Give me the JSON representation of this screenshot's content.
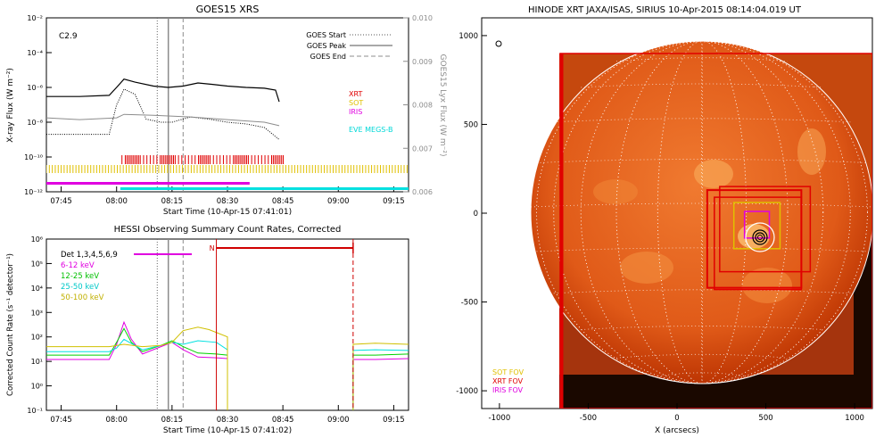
{
  "colors": {
    "xrt": "#e00000",
    "sot": "#e0c000",
    "iris": "#e000e0",
    "eve": "#00e0e0",
    "band_6_12": "#e000e0",
    "band_12_25": "#00d000",
    "band_25_50": "#00e0e0",
    "band_50_100": "#d0c000",
    "gray": "#8c8c8c",
    "sun_dark": "#c83000",
    "sun_light": "#f08030"
  },
  "goes": {
    "title": "GOES15 XRS",
    "ylabel": "X-ray Flux (W m⁻²)",
    "y2label": "GOES15 Lyx Flux (W m⁻²)",
    "xlabel": "Start Time (10-Apr-15 07:41:01)",
    "class_label": "C2.9",
    "legend": [
      "GOES Start",
      "GOES Peak",
      "GOES End"
    ],
    "inst_legend": [
      "XRT",
      "SOT",
      "IRIS",
      "EVE MEGS-B"
    ],
    "ytick_labels": [
      "10⁻¹²",
      "10⁻¹⁰",
      "10⁻⁸",
      "10⁻⁶",
      "10⁻⁴",
      "10⁻²"
    ],
    "y2tick_labels": [
      "0.006",
      "0.007",
      "0.008",
      "0.009",
      "0.010"
    ],
    "xtick_labels": [
      "07:45",
      "08:00",
      "08:15",
      "08:30",
      "08:45",
      "09:00",
      "09:15"
    ]
  },
  "hessi": {
    "title": "HESSI Observing Summary Count Rates, Corrected",
    "ylabel": "Corrected Count Rate (s⁻¹ detector⁻¹)",
    "xlabel": "Start Time (10-Apr-15 07:41:02)",
    "legend": [
      "Det 1,3,4,5,6,9",
      "6-12 keV",
      "12-25 keV",
      "25-50 keV",
      "50-100 keV"
    ],
    "night_label": "N",
    "ytick_labels": [
      "10⁻¹",
      "10⁰",
      "10¹",
      "10²",
      "10³",
      "10⁴",
      "10⁵",
      "10⁶"
    ],
    "xtick_labels": [
      "07:45",
      "08:00",
      "08:15",
      "08:30",
      "08:45",
      "09:00",
      "09:15"
    ]
  },
  "sun": {
    "title": "HINODE XRT JAXA/ISAS, SIRIUS 10-Apr-2015 08:14:04.019 UT",
    "xlabel": "X (arcsecs)",
    "xtick_labels": [
      "-1000",
      "-500",
      "0",
      "500",
      "1000"
    ],
    "ytick_labels": [
      "1000",
      "500",
      "0",
      "-500",
      "-1000"
    ],
    "fov_legend": [
      "SOT FOV",
      "XRT FOV",
      "IRIS FOV"
    ]
  },
  "chart_data": [
    {
      "type": "line",
      "title": "GOES15 XRS",
      "ylabel": "X-ray Flux (W m⁻²)",
      "y2label": "GOES15 Lyx Flux (W m⁻²)",
      "xlabel": "Start Time (10-Apr-15 07:41:01)",
      "x_range": [
        "07:41",
        "09:19"
      ],
      "ylim": [
        1e-12,
        0.01
      ],
      "y2lim": [
        0.006,
        0.01
      ],
      "scale": "log",
      "flare_class": "C2.9",
      "goes_start": "08:11",
      "goes_peak": "08:14",
      "goes_end": "08:18",
      "series": [
        {
          "name": "long",
          "x": [
            "07:41",
            "07:50",
            "07:58",
            "08:00",
            "08:02",
            "08:05",
            "08:10",
            "08:14",
            "08:18",
            "08:22",
            "08:26",
            "08:30",
            "08:35",
            "08:40",
            "08:43",
            "08:44"
          ],
          "y": [
            3e-07,
            3e-07,
            3.5e-07,
            1e-06,
            3e-06,
            2e-06,
            1.2e-06,
            1e-06,
            1.2e-06,
            1.8e-06,
            1.5e-06,
            1.2e-06,
            1e-06,
            9e-07,
            7e-07,
            1.5e-07
          ]
        },
        {
          "name": "short",
          "x": [
            "07:41",
            "07:50",
            "07:58",
            "08:00",
            "08:02",
            "08:05",
            "08:08",
            "08:12",
            "08:15",
            "08:20",
            "08:25",
            "08:30",
            "08:35",
            "08:40",
            "08:44"
          ],
          "y": [
            2e-09,
            2e-09,
            2e-09,
            1e-07,
            8e-07,
            4e-07,
            1.5e-08,
            1e-08,
            1e-08,
            2e-08,
            1.5e-08,
            1e-08,
            8e-09,
            5e-09,
            1e-09
          ]
        },
        {
          "name": "lyman-alpha",
          "x": [
            "07:41",
            "07:50",
            "08:00",
            "08:02",
            "08:10",
            "08:20",
            "08:30",
            "08:40",
            "08:44"
          ],
          "y": [
            0.0077,
            0.00766,
            0.0077,
            0.00778,
            0.00776,
            0.00772,
            0.00766,
            0.0076,
            0.00752
          ]
        }
      ],
      "instrument_coverage": {
        "XRT": [
          "08:01",
          "08:46"
        ],
        "SOT": [
          "07:41",
          "09:19"
        ],
        "IRIS": [
          "07:41",
          "08:36"
        ],
        "EVE MEGS-B": [
          "08:01",
          "09:19"
        ]
      }
    },
    {
      "type": "line",
      "title": "HESSI Observing Summary Count Rates, Corrected",
      "ylabel": "Corrected Count Rate (s⁻¹ detector⁻¹)",
      "xlabel": "Start Time (10-Apr-15 07:41:02)",
      "x_range": [
        "07:41",
        "09:19"
      ],
      "ylim": [
        0.1,
        1000000.0
      ],
      "scale": "log",
      "night": [
        "08:27",
        "09:04"
      ],
      "series": [
        {
          "name": "6-12 keV",
          "x": [
            "07:41",
            "07:58",
            "08:00",
            "08:02",
            "08:04",
            "08:07",
            "08:12",
            "08:15",
            "08:18",
            "08:22",
            "08:27",
            "08:30"
          ],
          "y": [
            12,
            12,
            50,
            400,
            80,
            20,
            40,
            60,
            30,
            15,
            14,
            13
          ]
        },
        {
          "name": "12-25 keV",
          "x": [
            "07:41",
            "07:58",
            "08:00",
            "08:02",
            "08:04",
            "08:07",
            "08:12",
            "08:15",
            "08:18",
            "08:22",
            "08:27",
            "08:30"
          ],
          "y": [
            18,
            18,
            60,
            220,
            60,
            25,
            45,
            70,
            40,
            22,
            20,
            18
          ]
        },
        {
          "name": "25-50 keV",
          "x": [
            "07:41",
            "07:58",
            "08:00",
            "08:02",
            "08:07",
            "08:12",
            "08:15",
            "08:18",
            "08:22",
            "08:27",
            "08:30"
          ],
          "y": [
            25,
            25,
            35,
            80,
            30,
            45,
            60,
            50,
            70,
            60,
            30
          ]
        },
        {
          "name": "50-100 keV",
          "x": [
            "07:41",
            "07:58",
            "08:02",
            "08:07",
            "08:12",
            "08:15",
            "08:18",
            "08:22",
            "08:25",
            "08:30"
          ],
          "y": [
            40,
            40,
            50,
            40,
            45,
            60,
            180,
            250,
            200,
            100
          ]
        }
      ],
      "after_night": [
        {
          "name": "6-12 keV",
          "x": [
            "09:04",
            "09:10",
            "09:19"
          ],
          "y": [
            12,
            12,
            13
          ]
        },
        {
          "name": "12-25 keV",
          "x": [
            "09:04",
            "09:10",
            "09:19"
          ],
          "y": [
            18,
            18,
            20
          ]
        },
        {
          "name": "25-50 keV",
          "x": [
            "09:04",
            "09:10",
            "09:19"
          ],
          "y": [
            28,
            30,
            28
          ]
        },
        {
          "name": "50-100 keV",
          "x": [
            "09:04",
            "09:10",
            "09:19"
          ],
          "y": [
            50,
            55,
            50
          ]
        }
      ]
    },
    {
      "type": "heatmap",
      "title": "HINODE XRT JAXA/ISAS, SIRIUS 10-Apr-2015 08:14:04.019 UT",
      "xlabel": "X (arcsecs)",
      "xlim": [
        -1100,
        1100
      ],
      "ylim": [
        -1100,
        1100
      ],
      "solar_radius_arcsec": 960,
      "fov": {
        "XRT": {
          "xmin": 170,
          "xmax": 700,
          "ymin": -420,
          "ymax": 130
        },
        "SOT": {
          "xmin": 320,
          "xmax": 580,
          "ymin": -200,
          "ymax": 60
        },
        "IRIS": {
          "xmin": 380,
          "xmax": 520,
          "ymin": -140,
          "ymax": 10
        }
      },
      "flare_center": [
        460,
        -140
      ]
    }
  ]
}
